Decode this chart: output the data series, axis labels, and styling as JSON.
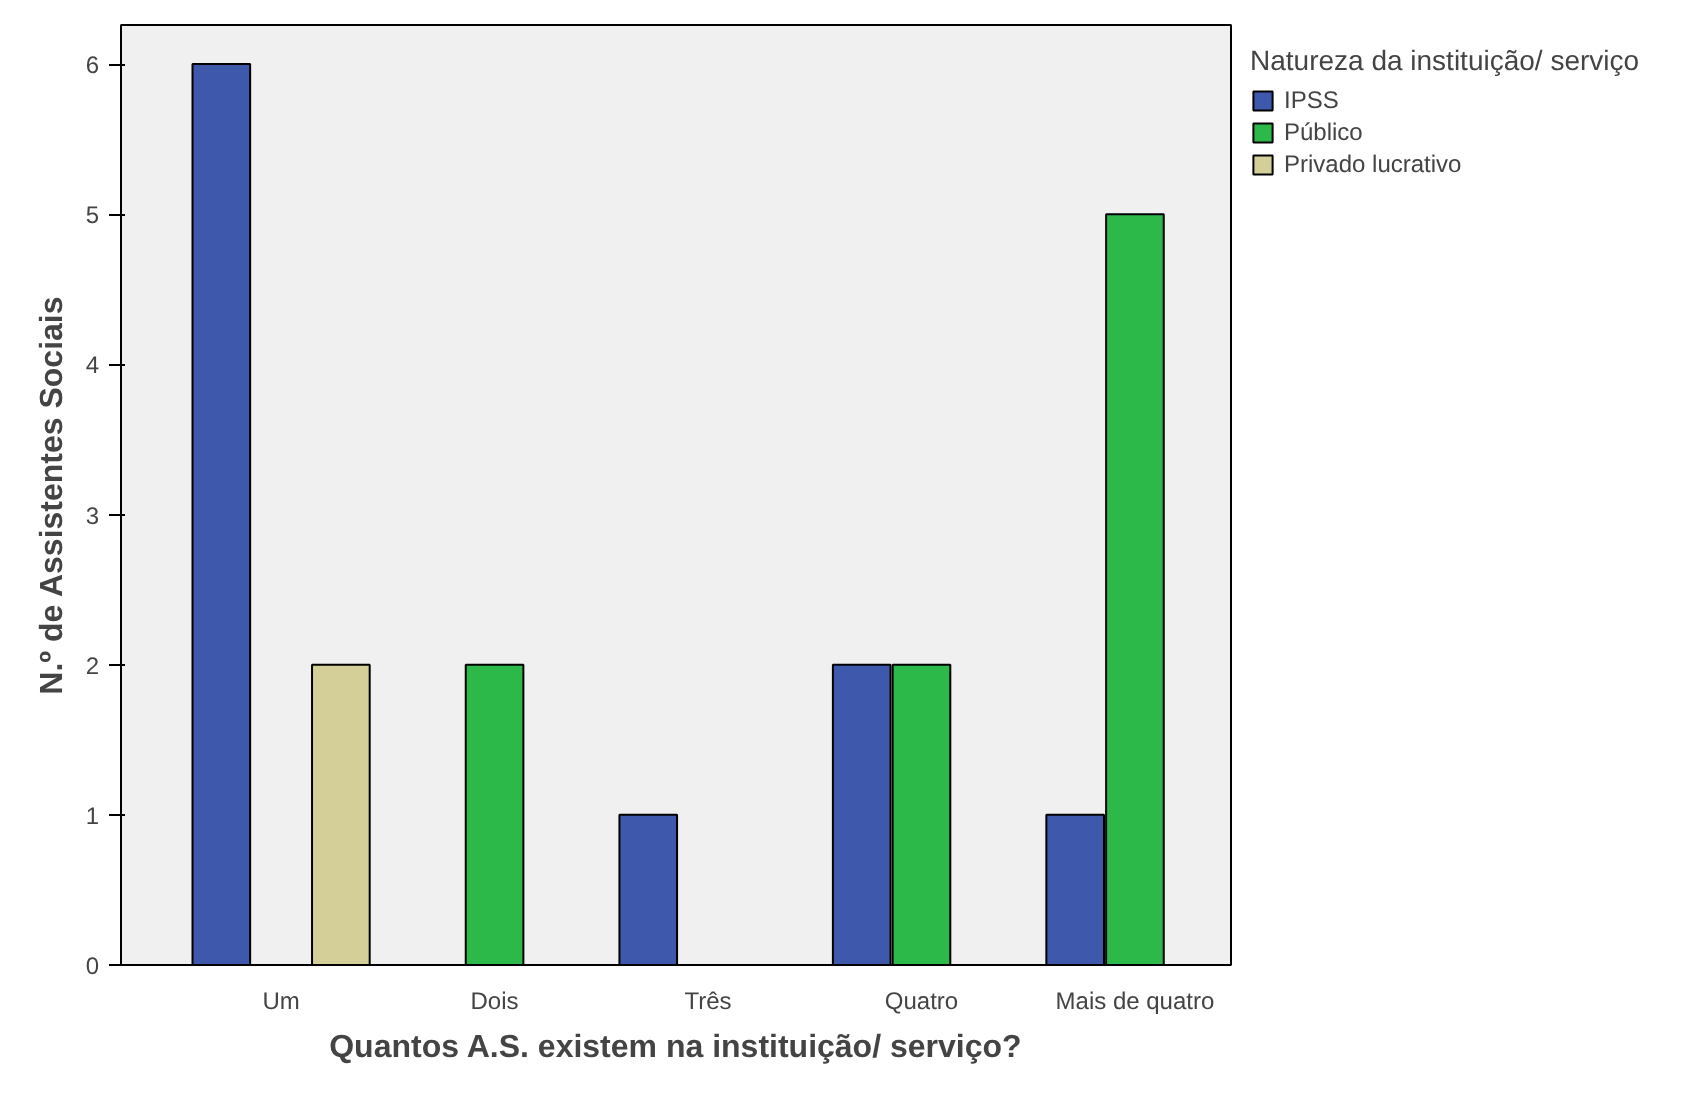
{
  "chart_data": {
    "type": "bar",
    "xlabel": "Quantos A.S. existem na instituição/ serviço?",
    "ylabel": "N.º de Assistentes Sociais",
    "legend_title": "Natureza da instituição/ serviço",
    "categories": [
      "Um",
      "Dois",
      "Três",
      "Quatro",
      "Mais de quatro"
    ],
    "series": [
      {
        "name": "IPSS",
        "color": "#3e58ac",
        "values": [
          6,
          null,
          1,
          2,
          1
        ]
      },
      {
        "name": "Público",
        "color": "#2db84a",
        "values": [
          null,
          2,
          null,
          2,
          5
        ]
      },
      {
        "name": "Privado lucrativo",
        "color": "#d4cf99",
        "values": [
          2,
          null,
          null,
          null,
          null
        ]
      }
    ],
    "ylim": [
      0,
      6.26
    ],
    "yticks": [
      0,
      1,
      2,
      3,
      4,
      5,
      6
    ],
    "grid": false,
    "legend": "top right"
  }
}
